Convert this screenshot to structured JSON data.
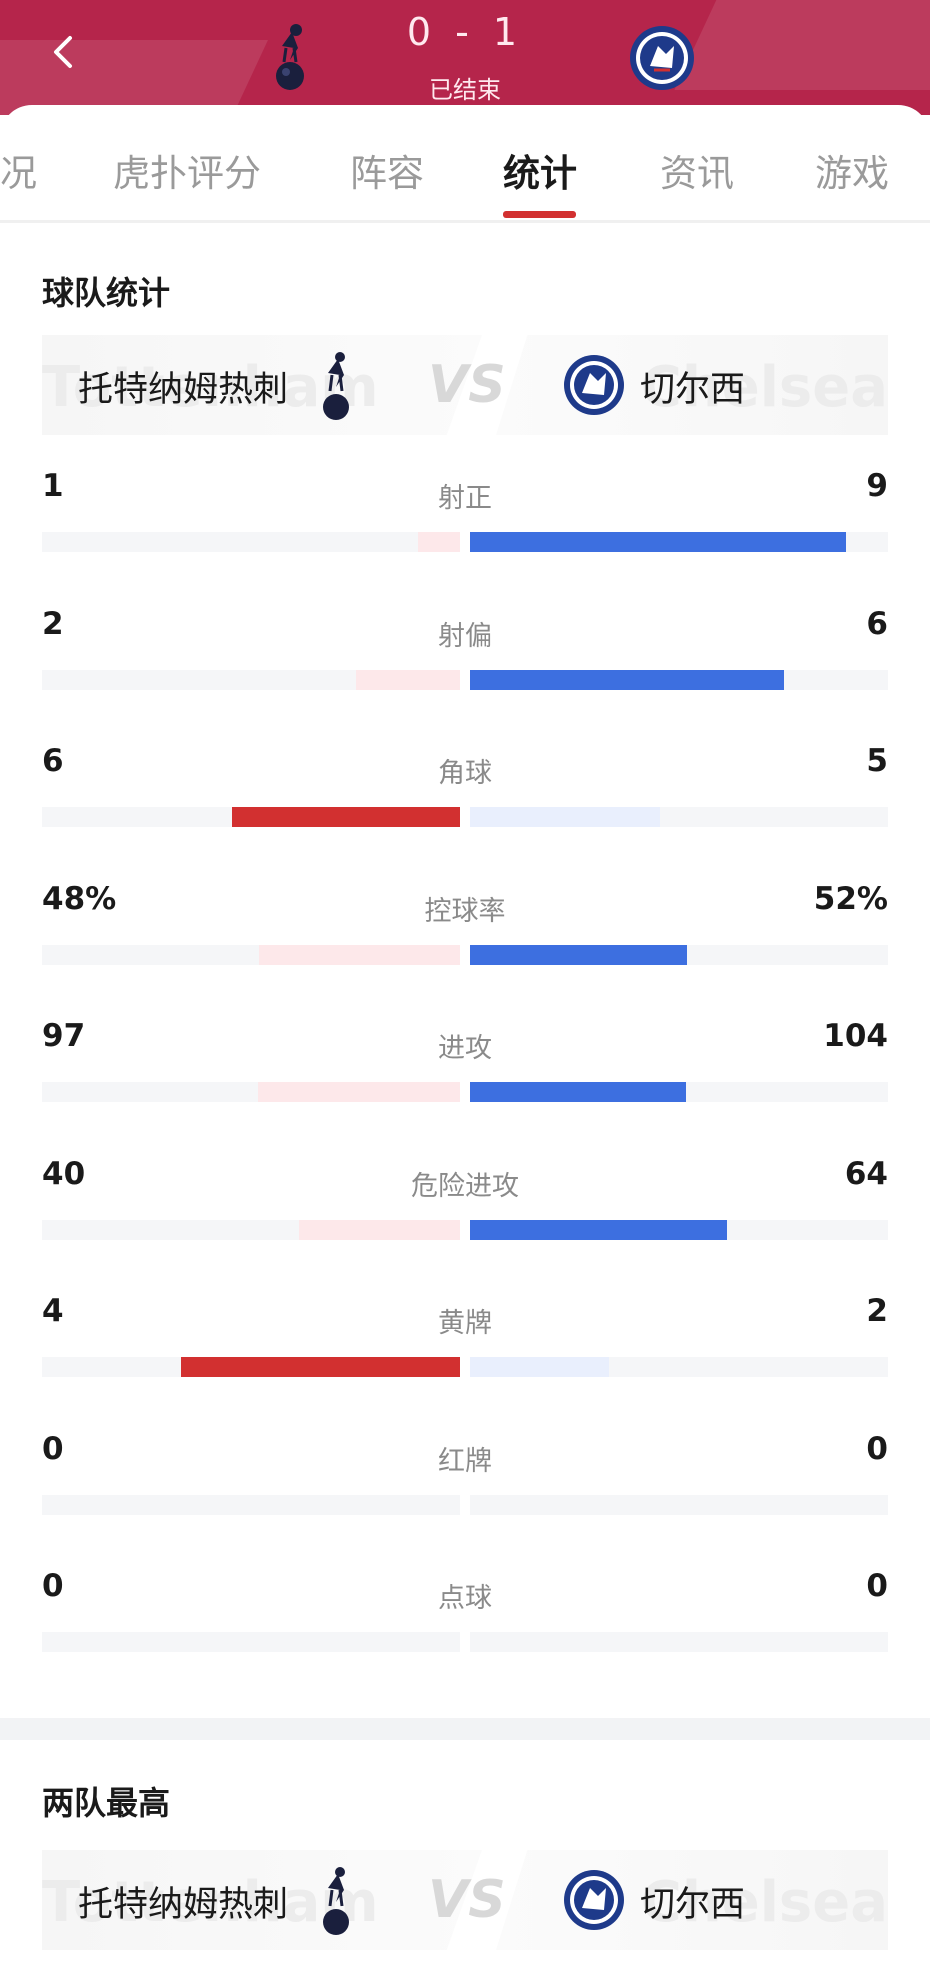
{
  "header": {
    "score": "0 - 1",
    "status": "已结束",
    "back_icon": "chevron-left-icon",
    "home_crest": "tottenham-crest-icon",
    "away_crest": "chelsea-crest-icon",
    "bg_color": "#b5254b"
  },
  "tabs": [
    {
      "label": "况",
      "active": false
    },
    {
      "label": "虎扑评分",
      "active": false
    },
    {
      "label": "阵容",
      "active": false
    },
    {
      "label": "统计",
      "active": true
    },
    {
      "label": "资讯",
      "active": false
    },
    {
      "label": "游戏",
      "active": false
    }
  ],
  "team_stats": {
    "title": "球队统计",
    "home_team": "托特纳姆热刺",
    "away_team": "切尔西",
    "vs": "VS",
    "home_ghost": "Tottenham",
    "away_ghost": "Chelsea",
    "colors": {
      "home_strong": "#d23030",
      "home_weak": "#fde8ea",
      "away_strong": "#3d6fe0",
      "away_weak": "#e9effd"
    },
    "rows": [
      {
        "label": "射正",
        "home": "1",
        "away": "9",
        "home_value": 1,
        "away_value": 9,
        "leader": "away"
      },
      {
        "label": "射偏",
        "home": "2",
        "away": "6",
        "home_value": 2,
        "away_value": 6,
        "leader": "away"
      },
      {
        "label": "角球",
        "home": "6",
        "away": "5",
        "home_value": 6,
        "away_value": 5,
        "leader": "home"
      },
      {
        "label": "控球率",
        "home": "48%",
        "away": "52%",
        "home_value": 48,
        "away_value": 52,
        "leader": "away"
      },
      {
        "label": "进攻",
        "home": "97",
        "away": "104",
        "home_value": 97,
        "away_value": 104,
        "leader": "away"
      },
      {
        "label": "危险进攻",
        "home": "40",
        "away": "64",
        "home_value": 40,
        "away_value": 64,
        "leader": "away"
      },
      {
        "label": "黄牌",
        "home": "4",
        "away": "2",
        "home_value": 4,
        "away_value": 2,
        "leader": "home"
      },
      {
        "label": "红牌",
        "home": "0",
        "away": "0",
        "home_value": 0,
        "away_value": 0,
        "leader": "none"
      },
      {
        "label": "点球",
        "home": "0",
        "away": "0",
        "home_value": 0,
        "away_value": 0,
        "leader": "none"
      }
    ]
  },
  "top_players": {
    "title": "两队最高",
    "home_team": "托特纳姆热刺",
    "away_team": "切尔西",
    "vs": "VS"
  }
}
